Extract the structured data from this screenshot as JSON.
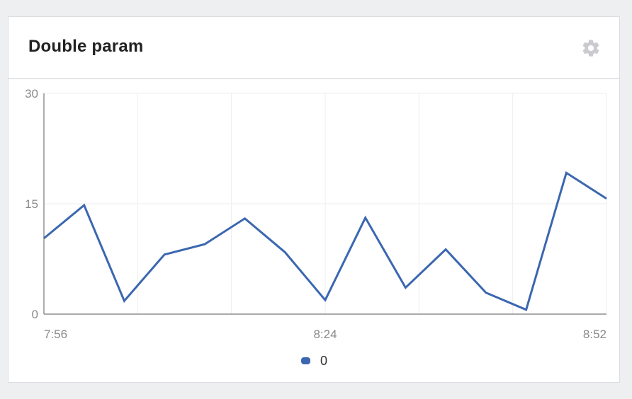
{
  "widget": {
    "title": "Double param",
    "settings_icon": "gear-icon"
  },
  "chart_data": {
    "type": "line",
    "title": "Double param",
    "xlabel": "",
    "ylabel": "",
    "x": [
      "7:56",
      "8:00",
      "8:04",
      "8:08",
      "8:12",
      "8:16",
      "8:20",
      "8:24",
      "8:28",
      "8:32",
      "8:36",
      "8:40",
      "8:44",
      "8:48",
      "8:52"
    ],
    "x_ticks": [
      "7:56",
      "8:24",
      "8:52"
    ],
    "y_ticks": [
      0,
      15,
      30
    ],
    "ylim": [
      0,
      30
    ],
    "grid": true,
    "legend": "bottom-center",
    "series": [
      {
        "name": "0",
        "color": "#3b67b0",
        "values": [
          10.3,
          14.8,
          1.8,
          8.1,
          9.5,
          13.0,
          8.4,
          1.9,
          13.1,
          3.6,
          8.8,
          2.9,
          0.6,
          19.2,
          15.7
        ]
      }
    ]
  }
}
